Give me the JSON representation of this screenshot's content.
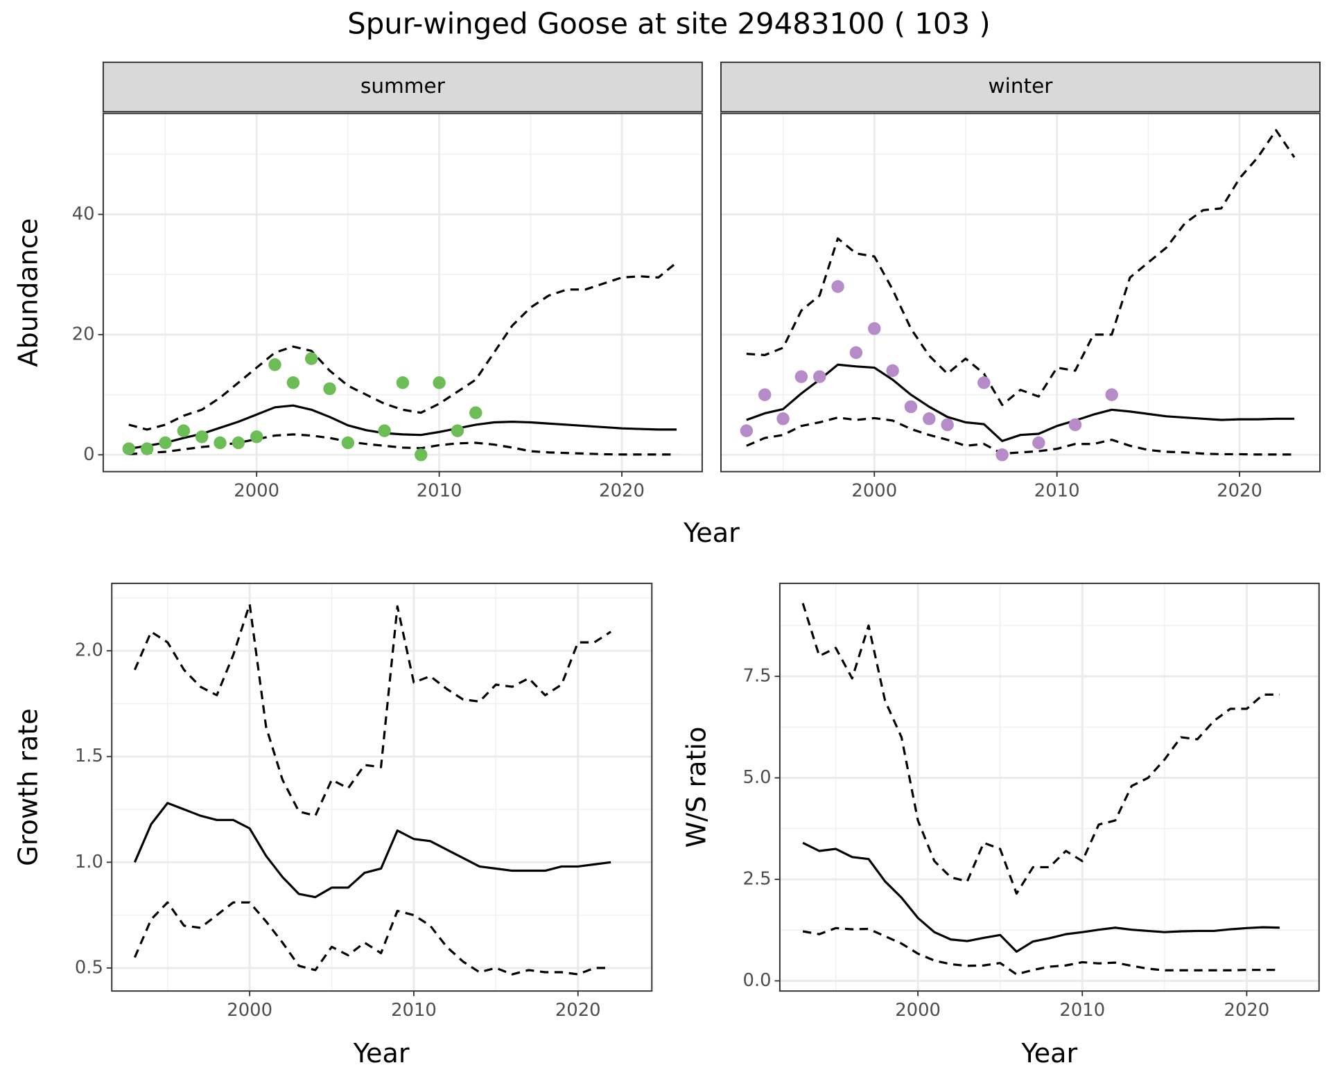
{
  "title": "Spur-winged Goose at site 29483100 ( 103 )",
  "chart_data": [
    {
      "type": "line",
      "facet": "summer",
      "xlabel": "Year",
      "ylabel": "Abundance",
      "x": [
        1993,
        1994,
        1995,
        1996,
        1997,
        1998,
        1999,
        2000,
        2001,
        2002,
        2003,
        2004,
        2005,
        2006,
        2007,
        2008,
        2009,
        2010,
        2011,
        2012,
        2013,
        2014,
        2015,
        2016,
        2017,
        2018,
        2019,
        2020,
        2021,
        2022,
        2023
      ],
      "xlim": [
        1991.6,
        2024.4
      ],
      "ylim": [
        -2.8,
        56.8
      ],
      "xticks": [
        2000,
        2010,
        2020
      ],
      "yticks": [
        0,
        20,
        40
      ],
      "grid": true,
      "show_ytick_labels": true,
      "series": [
        {
          "type": "line",
          "color": "#000000",
          "dashed": false,
          "values": [
            1.0,
            1.5,
            2.0,
            2.8,
            3.5,
            4.5,
            5.5,
            6.7,
            7.9,
            8.2,
            7.5,
            6.3,
            4.9,
            4.1,
            3.6,
            3.4,
            3.3,
            3.8,
            4.4,
            5.0,
            5.4,
            5.5,
            5.4,
            5.2,
            5.0,
            4.8,
            4.6,
            4.4,
            4.3,
            4.2,
            4.2
          ]
        },
        {
          "type": "line",
          "color": "#000000",
          "dashed": true,
          "values": [
            5.0,
            4.2,
            5.0,
            6.5,
            7.5,
            9.5,
            12,
            14.5,
            17,
            18,
            17.3,
            14,
            11.5,
            10,
            8.5,
            7.5,
            7,
            8.5,
            10.5,
            12.5,
            17,
            21.5,
            24.5,
            26.5,
            27.5,
            27.5,
            28.5,
            29.5,
            29.7,
            29.5,
            32
          ]
        },
        {
          "type": "line",
          "color": "#000000",
          "dashed": true,
          "values": [
            0.1,
            0.3,
            0.5,
            0.9,
            1.3,
            1.6,
            2.0,
            2.6,
            3.2,
            3.4,
            3.2,
            2.8,
            2.2,
            1.8,
            1.5,
            1.2,
            1.1,
            1.6,
            1.9,
            2.0,
            1.7,
            1.2,
            0.6,
            0.4,
            0.3,
            0.2,
            0.1,
            0.05,
            0.05,
            0.05,
            0.05
          ]
        },
        {
          "type": "scatter",
          "color": "#6dbd57",
          "values": [
            1,
            1,
            2,
            4,
            3,
            2,
            2,
            3,
            15,
            12,
            16,
            11,
            2,
            null,
            4,
            12,
            0,
            12,
            4,
            7,
            null,
            null,
            null,
            null,
            null,
            null,
            null,
            null,
            null,
            null,
            null
          ]
        }
      ]
    },
    {
      "type": "line",
      "facet": "winter",
      "x": [
        1993,
        1994,
        1995,
        1996,
        1997,
        1998,
        1999,
        2000,
        2001,
        2002,
        2003,
        2004,
        2005,
        2006,
        2007,
        2008,
        2009,
        2010,
        2011,
        2012,
        2013,
        2014,
        2015,
        2016,
        2017,
        2018,
        2019,
        2020,
        2021,
        2022,
        2023
      ],
      "xlim": [
        1991.6,
        2024.4
      ],
      "ylim": [
        -2.8,
        56.8
      ],
      "xticks": [
        2000,
        2010,
        2020
      ],
      "yticks": [
        0,
        20,
        40
      ],
      "grid": true,
      "show_ytick_labels": false,
      "series": [
        {
          "type": "line",
          "color": "#000000",
          "dashed": false,
          "values": [
            5.8,
            6.9,
            7.6,
            10.2,
            12.5,
            15,
            14.7,
            14.5,
            12.5,
            10,
            8,
            6.3,
            5.4,
            5.1,
            2.3,
            3.3,
            3.5,
            4.8,
            5.7,
            6.7,
            7.5,
            7.2,
            6.8,
            6.4,
            6.2,
            6.0,
            5.8,
            5.9,
            5.9,
            6.0,
            6.0
          ]
        },
        {
          "type": "line",
          "color": "#000000",
          "dashed": true,
          "values": [
            16.8,
            16.6,
            17.8,
            24,
            26.5,
            36,
            33.5,
            33,
            27.5,
            21,
            16.5,
            13.5,
            16,
            13.5,
            8.3,
            10.8,
            9.7,
            14.5,
            14.0,
            20,
            20,
            29.5,
            32,
            34.5,
            38.5,
            40.7,
            41,
            46,
            49.5,
            54,
            49.5
          ]
        },
        {
          "type": "line",
          "color": "#000000",
          "dashed": true,
          "values": [
            1.5,
            2.8,
            3.3,
            4.8,
            5.4,
            6.2,
            5.8,
            6.1,
            5.7,
            4.3,
            3.3,
            2.5,
            1.5,
            1.8,
            0.2,
            0.4,
            0.6,
            1.0,
            1.8,
            1.8,
            2.5,
            1.5,
            0.8,
            0.5,
            0.4,
            0.2,
            0.1,
            0.1,
            0.05,
            0.05,
            0.05
          ]
        },
        {
          "type": "scatter",
          "color": "#b58bc8",
          "values": [
            4,
            10,
            6,
            13,
            13,
            28,
            17,
            21,
            14,
            8,
            6,
            5,
            null,
            12,
            0,
            null,
            2,
            null,
            5,
            null,
            10,
            null,
            null,
            null,
            null,
            null,
            null,
            null,
            null,
            null,
            null
          ]
        }
      ]
    },
    {
      "type": "line",
      "xlabel": "Year",
      "ylabel": "Growth rate",
      "x": [
        1993,
        1994,
        1995,
        1996,
        1997,
        1998,
        1999,
        2000,
        2001,
        2002,
        2003,
        2004,
        2005,
        2006,
        2007,
        2008,
        2009,
        2010,
        2011,
        2012,
        2013,
        2014,
        2015,
        2016,
        2017,
        2018,
        2019,
        2020,
        2021,
        2022
      ],
      "xlim": [
        1991.6,
        2024.5
      ],
      "ylim": [
        0.391,
        2.319
      ],
      "xticks": [
        2000,
        2010,
        2020
      ],
      "yticks": [
        0.5,
        {
          "value": 1,
          "label": "1.0"
        },
        1.5,
        {
          "value": 2,
          "label": "2.0"
        }
      ],
      "grid": true,
      "show_ytick_labels": true,
      "series": [
        {
          "type": "line",
          "color": "#000000",
          "dashed": false,
          "values": [
            1.0,
            1.18,
            1.28,
            1.25,
            1.22,
            1.2,
            1.2,
            1.16,
            1.03,
            0.93,
            0.85,
            0.835,
            0.88,
            0.88,
            0.95,
            0.97,
            1.15,
            1.11,
            1.1,
            1.06,
            1.02,
            0.98,
            0.97,
            0.96,
            0.96,
            0.96,
            0.98,
            0.98,
            0.99,
            1.0
          ]
        },
        {
          "type": "line",
          "color": "#000000",
          "dashed": true,
          "values": [
            1.91,
            2.09,
            2.04,
            1.91,
            1.83,
            1.79,
            1.98,
            2.22,
            1.64,
            1.39,
            1.24,
            1.22,
            1.39,
            1.35,
            1.46,
            1.45,
            2.21,
            1.85,
            1.88,
            1.82,
            1.77,
            1.76,
            1.84,
            1.83,
            1.87,
            1.79,
            1.84,
            2.04,
            2.04,
            2.09
          ]
        },
        {
          "type": "line",
          "color": "#000000",
          "dashed": true,
          "values": [
            0.55,
            0.73,
            0.81,
            0.7,
            0.69,
            0.75,
            0.81,
            0.81,
            0.72,
            0.62,
            0.51,
            0.49,
            0.6,
            0.56,
            0.62,
            0.57,
            0.77,
            0.75,
            0.7,
            0.6,
            0.53,
            0.48,
            0.5,
            0.47,
            0.49,
            0.48,
            0.48,
            0.47,
            0.5,
            0.5
          ]
        }
      ]
    },
    {
      "type": "line",
      "xlabel": "Year",
      "ylabel": "W/S ratio",
      "x": [
        1993,
        1994,
        1995,
        1996,
        1997,
        1998,
        1999,
        2000,
        2001,
        2002,
        2003,
        2004,
        2005,
        2006,
        2007,
        2008,
        2009,
        2010,
        2011,
        2012,
        2013,
        2014,
        2015,
        2016,
        2017,
        2018,
        2019,
        2020,
        2021,
        2022
      ],
      "xlim": [
        1991.6,
        2024.4
      ],
      "ylim": [
        -0.25,
        9.79
      ],
      "xticks": [
        2000,
        2010,
        2020
      ],
      "yticks": [
        {
          "value": 0,
          "label": "0.0"
        },
        2.5,
        {
          "value": 5,
          "label": "5.0"
        },
        7.5
      ],
      "grid": true,
      "show_ytick_labels": true,
      "series": [
        {
          "type": "line",
          "color": "#000000",
          "dashed": false,
          "values": [
            3.4,
            3.2,
            3.25,
            3.05,
            3.0,
            2.45,
            2.05,
            1.55,
            1.2,
            1.02,
            0.98,
            1.06,
            1.13,
            0.72,
            0.97,
            1.05,
            1.15,
            1.2,
            1.26,
            1.31,
            1.26,
            1.23,
            1.2,
            1.22,
            1.23,
            1.23,
            1.27,
            1.3,
            1.32,
            1.31
          ]
        },
        {
          "type": "line",
          "color": "#000000",
          "dashed": true,
          "values": [
            9.3,
            8.0,
            8.2,
            7.45,
            8.75,
            6.9,
            6.0,
            3.95,
            2.95,
            2.55,
            2.45,
            3.4,
            3.25,
            2.15,
            2.8,
            2.8,
            3.2,
            2.95,
            3.85,
            3.95,
            4.8,
            5.0,
            5.45,
            6.0,
            5.95,
            6.4,
            6.7,
            6.7,
            7.05,
            7.05
          ]
        },
        {
          "type": "line",
          "color": "#000000",
          "dashed": true,
          "values": [
            1.22,
            1.15,
            1.3,
            1.27,
            1.28,
            1.1,
            0.92,
            0.67,
            0.5,
            0.41,
            0.37,
            0.38,
            0.44,
            0.16,
            0.27,
            0.35,
            0.38,
            0.46,
            0.43,
            0.45,
            0.37,
            0.3,
            0.26,
            0.26,
            0.26,
            0.26,
            0.26,
            0.27,
            0.27,
            0.27
          ]
        }
      ]
    }
  ]
}
